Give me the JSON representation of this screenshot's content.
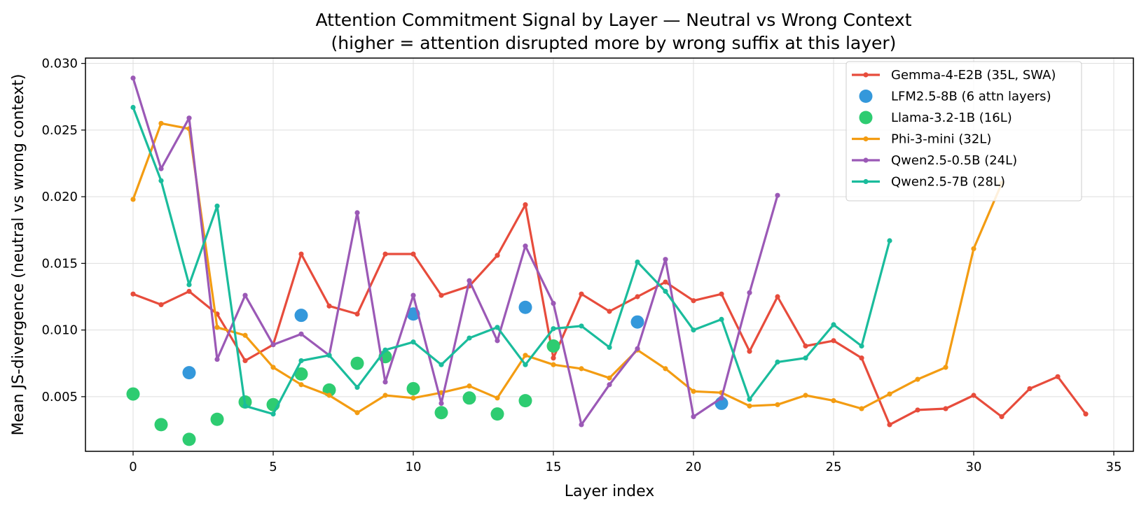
{
  "chart_data": {
    "type": "line",
    "title": "Attention Commitment Signal by Layer — Neutral vs Wrong Context",
    "subtitle": "(higher = attention disrupted more by wrong suffix at this layer)",
    "xlabel": "Layer index",
    "ylabel": "Mean JS-divergence (neutral vs wrong context)",
    "xlim": [
      -1.7,
      35.7
    ],
    "ylim": [
      0.0009,
      0.0304
    ],
    "xticks": [
      "0",
      "5",
      "10",
      "15",
      "20",
      "25",
      "30",
      "35"
    ],
    "yticks": [
      "0.005",
      "0.010",
      "0.015",
      "0.020",
      "0.025",
      "0.030"
    ],
    "grid": true,
    "legend_position": "top-right",
    "series": [
      {
        "name": "Gemma-4-E2B (35L, SWA)",
        "color": "#e74c3c",
        "style": "line",
        "x": [
          0,
          1,
          2,
          3,
          4,
          5,
          6,
          7,
          8,
          9,
          10,
          11,
          12,
          13,
          14,
          15,
          16,
          17,
          18,
          19,
          20,
          21,
          22,
          23,
          24,
          25,
          26,
          27,
          28,
          29,
          30,
          31,
          32,
          33,
          34
        ],
        "y": [
          0.0127,
          0.0119,
          0.0129,
          0.0112,
          0.0077,
          0.0089,
          0.0157,
          0.0118,
          0.0112,
          0.0157,
          0.0157,
          0.0126,
          0.0133,
          0.0156,
          0.0194,
          0.0079,
          0.0127,
          0.0114,
          0.0125,
          0.0136,
          0.0122,
          0.0127,
          0.0084,
          0.0125,
          0.0088,
          0.0092,
          0.0079,
          0.0029,
          0.004,
          0.0041,
          0.0051,
          0.0035,
          0.0056,
          0.0065,
          0.0037
        ]
      },
      {
        "name": "LFM2.5-8B (6 attn layers)",
        "color": "#3498db",
        "style": "points",
        "x": [
          2,
          6,
          10,
          14,
          18,
          21
        ],
        "y": [
          0.0068,
          0.0111,
          0.0112,
          0.0117,
          0.0106,
          0.0045
        ]
      },
      {
        "name": "Llama-3.2-1B (16L)",
        "color": "#2ecc71",
        "style": "points",
        "x": [
          0,
          1,
          2,
          3,
          4,
          5,
          6,
          7,
          8,
          9,
          10,
          11,
          12,
          13,
          14,
          15
        ],
        "y": [
          0.0052,
          0.0029,
          0.0018,
          0.0033,
          0.0046,
          0.0044,
          0.0067,
          0.0055,
          0.0075,
          0.008,
          0.0056,
          0.0038,
          0.0049,
          0.0037,
          0.0047,
          0.0088
        ]
      },
      {
        "name": "Phi-3-mini (32L)",
        "color": "#f39c12",
        "style": "line",
        "x": [
          0,
          1,
          2,
          3,
          4,
          5,
          6,
          7,
          8,
          9,
          10,
          11,
          12,
          13,
          14,
          15,
          16,
          17,
          18,
          19,
          20,
          21,
          22,
          23,
          24,
          25,
          26,
          27,
          28,
          29,
          30,
          31
        ],
        "y": [
          0.0198,
          0.0255,
          0.0251,
          0.0102,
          0.0096,
          0.0072,
          0.0059,
          0.0051,
          0.0038,
          0.0051,
          0.0049,
          0.0053,
          0.0058,
          0.0049,
          0.0081,
          0.0074,
          0.0071,
          0.0064,
          0.0085,
          0.0071,
          0.0054,
          0.0053,
          0.0043,
          0.0044,
          0.0051,
          0.0047,
          0.0041,
          0.0052,
          0.0063,
          0.0072,
          0.0161,
          0.021
        ]
      },
      {
        "name": "Qwen2.5-0.5B (24L)",
        "color": "#9b59b6",
        "style": "line",
        "x": [
          0,
          1,
          2,
          3,
          4,
          5,
          6,
          7,
          8,
          9,
          10,
          11,
          12,
          13,
          14,
          15,
          16,
          17,
          18,
          19,
          20,
          21,
          22,
          23
        ],
        "y": [
          0.0289,
          0.0221,
          0.0259,
          0.0078,
          0.0126,
          0.0089,
          0.0097,
          0.0081,
          0.0188,
          0.0061,
          0.0126,
          0.0045,
          0.0137,
          0.0092,
          0.0163,
          0.012,
          0.0029,
          0.0059,
          0.0086,
          0.0153,
          0.0035,
          0.0049,
          0.0128,
          0.0201
        ]
      },
      {
        "name": "Qwen2.5-7B (28L)",
        "color": "#1abc9c",
        "style": "line",
        "x": [
          0,
          1,
          2,
          3,
          4,
          5,
          6,
          7,
          8,
          9,
          10,
          11,
          12,
          13,
          14,
          15,
          16,
          17,
          18,
          19,
          20,
          21,
          22,
          23,
          24,
          25,
          26,
          27
        ],
        "y": [
          0.0267,
          0.0212,
          0.0134,
          0.0193,
          0.0043,
          0.0037,
          0.0077,
          0.0081,
          0.0057,
          0.0085,
          0.0091,
          0.0074,
          0.0094,
          0.0102,
          0.0074,
          0.0101,
          0.0103,
          0.0087,
          0.0151,
          0.0129,
          0.01,
          0.0108,
          0.0048,
          0.0076,
          0.0079,
          0.0104,
          0.0088,
          0.0167
        ]
      }
    ]
  }
}
